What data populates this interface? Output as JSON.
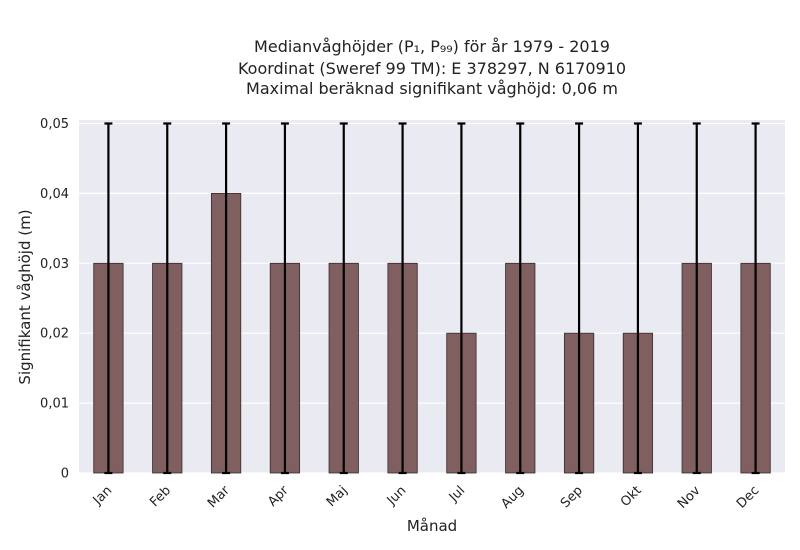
{
  "chart_data": {
    "type": "bar",
    "title": [
      "Medianvåghöjder (P₁, P₉₉) för år 1979 - 2019",
      "Koordinat (Sweref 99 TM): E 378297, N 6170910",
      "Maximal beräknad signifikant våghöjd: 0,06 m"
    ],
    "xlabel": "Månad",
    "ylabel": "Signifikant våghöjd (m)",
    "categories": [
      "Jan",
      "Feb",
      "Mar",
      "Apr",
      "Maj",
      "Jun",
      "Jul",
      "Aug",
      "Sep",
      "Okt",
      "Nov",
      "Dec"
    ],
    "values": [
      0.03,
      0.03,
      0.04,
      0.03,
      0.03,
      0.03,
      0.02,
      0.03,
      0.02,
      0.02,
      0.03,
      0.03
    ],
    "error_low": [
      0,
      0,
      0,
      0,
      0,
      0,
      0,
      0,
      0,
      0,
      0,
      0
    ],
    "error_high": [
      0.05,
      0.05,
      0.05,
      0.05,
      0.05,
      0.05,
      0.05,
      0.05,
      0.05,
      0.05,
      0.05,
      0.05
    ],
    "ylim": [
      0,
      0.0505
    ],
    "yticks": [
      0,
      0.01,
      0.02,
      0.03,
      0.04,
      0.05
    ],
    "ytick_labels": [
      "0",
      "0,01",
      "0,02",
      "0,03",
      "0,04",
      "0,05"
    ],
    "grid": true,
    "colors": {
      "bar": "#7f5f5f",
      "bar_edge": "#3a2a2a",
      "error": "#000000",
      "plot_bg": "#eaeaf2",
      "grid": "#ffffff"
    }
  }
}
